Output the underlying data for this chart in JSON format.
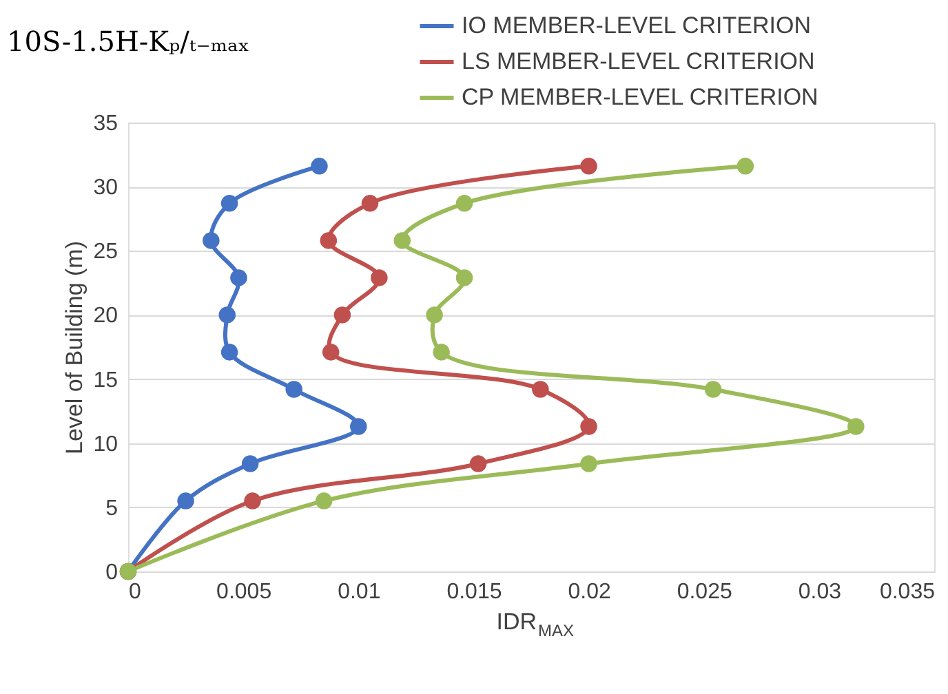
{
  "chart_data": {
    "type": "line",
    "title": "10S-1.5H-Kₚ/ₜ₋ₘₐₓ",
    "xlabel": "IDR$_{MAX}$",
    "ylabel": "Level of Building (m)",
    "xlim": [
      0,
      0.035
    ],
    "xticks": [
      0,
      0.005,
      0.01,
      0.015,
      0.02,
      0.025,
      0.03,
      0.035
    ],
    "ylim": [
      0,
      35
    ],
    "yticks": [
      0,
      5,
      10,
      15,
      20,
      25,
      30,
      35
    ],
    "grid": "y",
    "legend": "top right",
    "marker": "circle",
    "line_style": "solid",
    "series": [
      {
        "name": "IO MEMBER-LEVEL CRITERION",
        "color": "#4472c4",
        "x": [
          0,
          0.0025,
          0.0053,
          0.01,
          0.0072,
          0.0044,
          0.0043,
          0.0048,
          0.0036,
          0.0044,
          0.0083
        ],
        "values": [
          0,
          5.5,
          8.4,
          11.3,
          14.2,
          17.1,
          20.0,
          22.9,
          25.8,
          28.7,
          31.6
        ]
      },
      {
        "name": "LS MEMBER-LEVEL CRITERION",
        "color": "#c0504d",
        "x": [
          0,
          0.0054,
          0.0152,
          0.02,
          0.0179,
          0.0088,
          0.0093,
          0.0109,
          0.0087,
          0.0105,
          0.02
        ],
        "values": [
          0,
          5.5,
          8.4,
          11.3,
          14.2,
          17.1,
          20.0,
          22.9,
          25.8,
          28.7,
          31.6
        ]
      },
      {
        "name": "CP MEMBER-LEVEL CRITERION",
        "color": "#9bbb59",
        "x": [
          0,
          0.0085,
          0.02,
          0.0316,
          0.0254,
          0.0136,
          0.0133,
          0.0146,
          0.0119,
          0.0146,
          0.0268
        ],
        "values": [
          0,
          5.5,
          8.4,
          11.3,
          14.2,
          17.1,
          20.0,
          22.9,
          25.8,
          28.7,
          31.6
        ]
      }
    ]
  }
}
